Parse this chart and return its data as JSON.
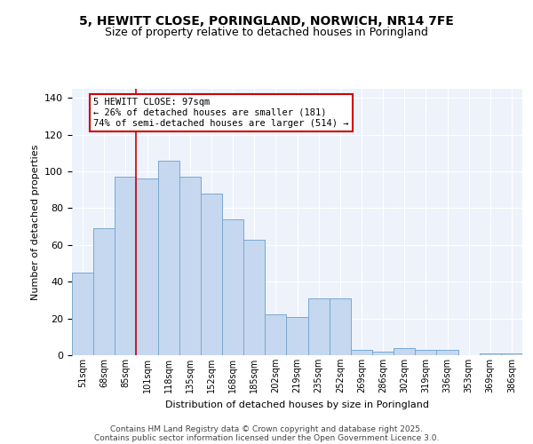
{
  "title": "5, HEWITT CLOSE, PORINGLAND, NORWICH, NR14 7FE",
  "subtitle": "Size of property relative to detached houses in Poringland",
  "xlabel": "Distribution of detached houses by size in Poringland",
  "ylabel": "Number of detached properties",
  "categories": [
    "51sqm",
    "68sqm",
    "85sqm",
    "101sqm",
    "118sqm",
    "135sqm",
    "152sqm",
    "168sqm",
    "185sqm",
    "202sqm",
    "219sqm",
    "235sqm",
    "252sqm",
    "269sqm",
    "286sqm",
    "302sqm",
    "319sqm",
    "336sqm",
    "353sqm",
    "369sqm",
    "386sqm"
  ],
  "values": [
    45,
    69,
    97,
    96,
    106,
    97,
    88,
    74,
    63,
    22,
    21,
    31,
    31,
    3,
    2,
    4,
    3,
    3,
    0,
    1,
    1
  ],
  "bar_color": "#c5d8f0",
  "bar_edge_color": "#7aa8d0",
  "red_line_x": 2.5,
  "red_line_label": "5 HEWITT CLOSE: 97sqm",
  "annotation_line1": "← 26% of detached houses are smaller (181)",
  "annotation_line2": "74% of semi-detached houses are larger (514) →",
  "annotation_box_color": "#ffffff",
  "annotation_box_edge": "#cc0000",
  "red_line_color": "#cc0000",
  "ylim": [
    0,
    145
  ],
  "yticks": [
    0,
    20,
    40,
    60,
    80,
    100,
    120,
    140
  ],
  "title_fontsize": 10,
  "subtitle_fontsize": 9,
  "footer1": "Contains HM Land Registry data © Crown copyright and database right 2025.",
  "footer2": "Contains public sector information licensed under the Open Government Licence 3.0.",
  "background_color": "#eef2fb",
  "fig_bg": "#ffffff"
}
